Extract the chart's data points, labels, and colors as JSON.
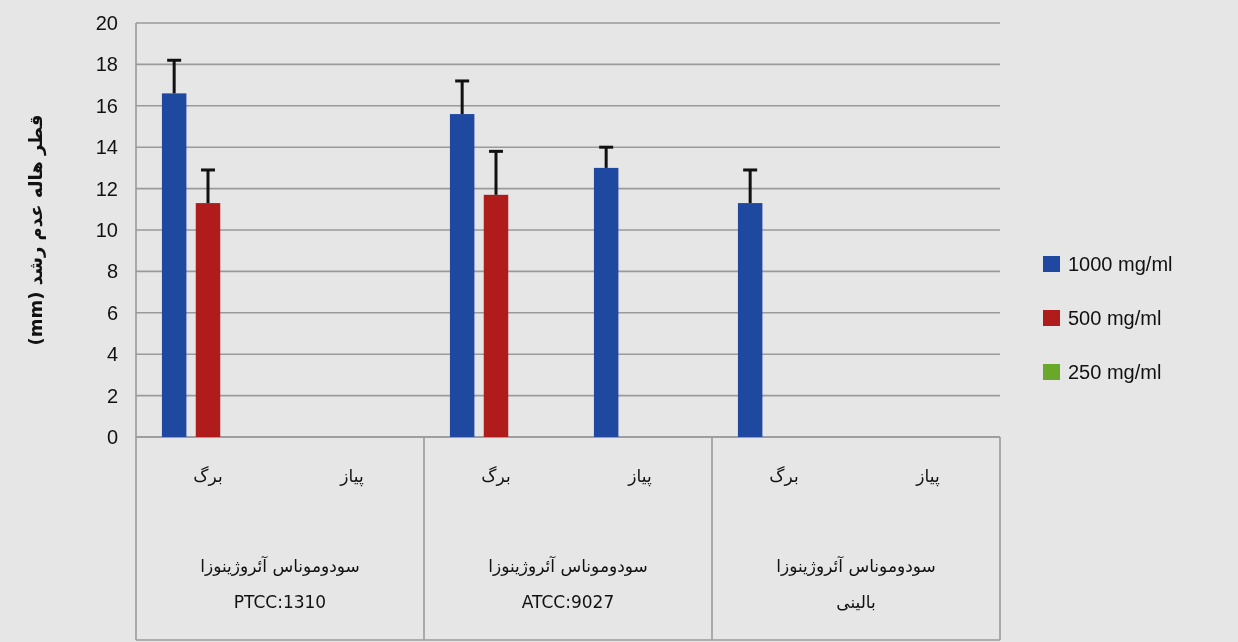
{
  "chart_data": {
    "type": "bar",
    "ylabel": "قطر هاله عدم رشد (mm)",
    "categories": [
      "برگ",
      "پیاز",
      "برگ",
      "پیاز",
      "برگ",
      "پیاز"
    ],
    "series": [
      {
        "name": "1000 mg/ml",
        "color": "#1f48a0",
        "values": [
          16.6,
          null,
          15.6,
          13,
          11.3,
          null
        ],
        "errors": [
          [
            16.6,
            18.2
          ],
          null,
          [
            15.6,
            17.2
          ],
          [
            13,
            14
          ],
          [
            11.3,
            12.9
          ],
          null
        ]
      },
      {
        "name": "500 mg/ml",
        "color": "#b01c1c",
        "values": [
          11.3,
          null,
          11.7,
          null,
          null,
          null
        ],
        "errors": [
          [
            11.3,
            12.9
          ],
          null,
          [
            11.7,
            13.8
          ],
          null,
          null,
          null
        ]
      },
      {
        "name": "250 mg/ml",
        "color": "#6aa82a",
        "values": [
          null,
          null,
          null,
          null,
          null,
          null
        ]
      }
    ],
    "annotations": [
      "سودوموناس آئروژینوزا",
      "PTCC:1310",
      "سودوموناس آئروژینوزا",
      "ATCC:9027",
      "سودوموناس آئروژینوزا",
      "بالینی"
    ],
    "ylim": [
      0,
      20
    ],
    "yticks": [
      0,
      2,
      4,
      6,
      8,
      10,
      12,
      14,
      16,
      18,
      20
    ],
    "grid": "y",
    "legend": "right"
  }
}
